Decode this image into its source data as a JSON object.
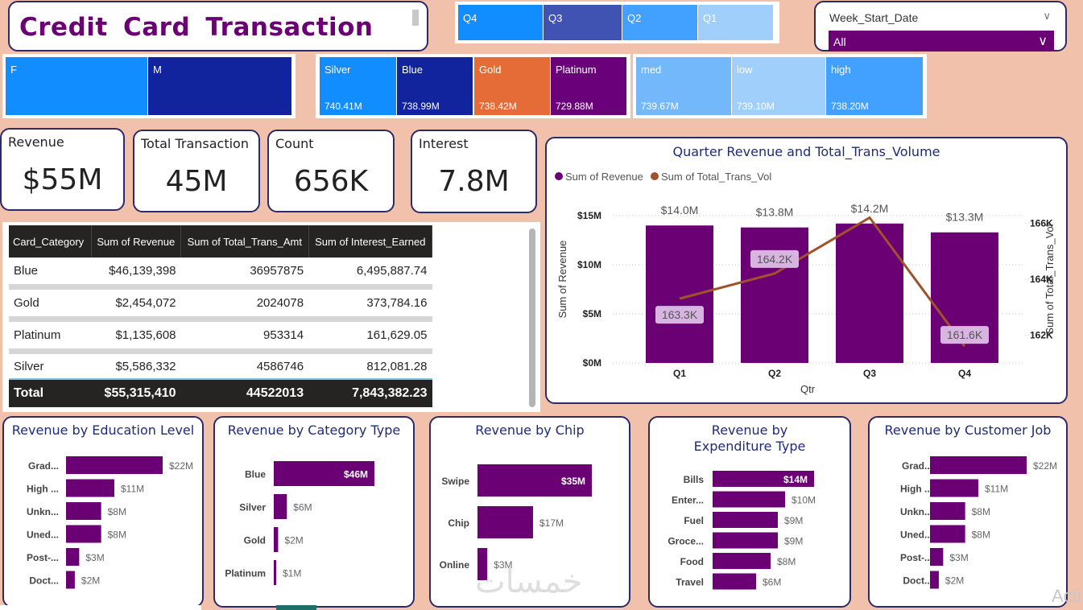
{
  "title": "Credit  Card  Transaction",
  "colors": {
    "background": "#f2c1ab",
    "accent_purple": "#6a0074",
    "title_navy": "#1f2a7a",
    "line_brown": "#a0522d"
  },
  "quarter_slicer": [
    {
      "label": "Q4",
      "color": "#118dff"
    },
    {
      "label": "Q3",
      "color": "#4053b2"
    },
    {
      "label": "Q2",
      "color": "#42a1ff"
    },
    {
      "label": "Q1",
      "color": "#a0cffc"
    }
  ],
  "week_filter": {
    "label": "Week_Start_Date",
    "selected": "All",
    "chevron_icon": "chevron-down-icon"
  },
  "gender_slicer": [
    {
      "label": "F",
      "color": "#118dff"
    },
    {
      "label": "M",
      "color": "#12239e"
    }
  ],
  "card_category_slicer": [
    {
      "label": "Silver",
      "value": "740.41M",
      "color": "#118dff"
    },
    {
      "label": "Blue",
      "value": "738.99M",
      "color": "#12239e"
    },
    {
      "label": "Gold",
      "value": "738.42M",
      "color": "#e66c37"
    },
    {
      "label": "Platinum",
      "value": "729.88M",
      "color": "#6b007b"
    }
  ],
  "income_slicer": [
    {
      "label": "med",
      "value": "739.67M",
      "color": "#72b8fb"
    },
    {
      "label": "low",
      "value": "739.10M",
      "color": "#a0cffc"
    },
    {
      "label": "high",
      "value": "738.20M",
      "color": "#42a1ff"
    }
  ],
  "kpis": [
    {
      "title": "Revenue",
      "value": "$55M"
    },
    {
      "title": "Total Transaction",
      "value": "45M"
    },
    {
      "title": "Count",
      "value": "656K"
    },
    {
      "title": "Interest",
      "value": "7.8M"
    }
  ],
  "table": {
    "columns": [
      "Card_Category",
      "Sum of Revenue",
      "Sum of Total_Trans_Amt",
      "Sum of Interest_Earned"
    ],
    "rows": [
      [
        "Blue",
        "$46,139,398",
        "36957875",
        "6,495,887.74"
      ],
      [
        "Gold",
        "$2,454,072",
        "2024078",
        "373,784.16"
      ],
      [
        "Platinum",
        "$1,135,608",
        "953314",
        "161,629.05"
      ],
      [
        "Silver",
        "$5,586,332",
        "4586746",
        "812,081.28"
      ]
    ],
    "total": [
      "Total",
      "$55,315,410",
      "44522013",
      "7,843,382.23"
    ]
  },
  "chart_data": [
    {
      "type": "bar+line",
      "title": "Quarter Revenue and Total_Trans_Volume",
      "xlabel": "Qtr",
      "ylabel": "Sum of Revenue",
      "y2label": "Sum of Total_Trans_Vol",
      "categories": [
        "Q1",
        "Q2",
        "Q3",
        "Q4"
      ],
      "legend": [
        "Sum of Revenue",
        "Sum of Total_Trans_Vol"
      ],
      "legend_position": "top-left",
      "series": [
        {
          "name": "Sum of Revenue",
          "type": "bar",
          "values": [
            14.0,
            13.8,
            14.2,
            13.3
          ],
          "labels": [
            "$14.0M",
            "$13.8M",
            "$14.2M",
            "$13.3M"
          ],
          "color": "#6a0074"
        },
        {
          "name": "Sum of Total_Trans_Vol",
          "type": "line",
          "values": [
            163.3,
            164.2,
            166.2,
            161.6
          ],
          "labels": [
            "163.3K",
            "164.2K",
            "",
            "161.6K"
          ],
          "color": "#a0522d"
        }
      ],
      "ylim": [
        0,
        15
      ],
      "y_ticks": [
        "$0M",
        "$5M",
        "$10M",
        "$15M"
      ],
      "y2lim": [
        161,
        166.5
      ],
      "y2_ticks": [
        "162K",
        "164K",
        "166K"
      ],
      "grid": true
    },
    {
      "type": "bar",
      "orientation": "horizontal",
      "title": "Revenue by Education Level",
      "categories": [
        "Grad...",
        "High ...",
        "Unkn...",
        "Uned...",
        "Post-...",
        "Doct..."
      ],
      "values": [
        22,
        11,
        8,
        8,
        3,
        2
      ],
      "labels": [
        "$22M",
        "$11M",
        "$8M",
        "$8M",
        "$3M",
        "$2M"
      ]
    },
    {
      "type": "bar",
      "orientation": "horizontal",
      "title": "Revenue by Category Type",
      "categories": [
        "Blue",
        "Silver",
        "Gold",
        "Platinum"
      ],
      "values": [
        46,
        6,
        2,
        1
      ],
      "labels": [
        "$46M",
        "$6M",
        "$2M",
        "$1M"
      ]
    },
    {
      "type": "bar",
      "orientation": "horizontal",
      "title": "Revenue by Chip",
      "categories": [
        "Swipe",
        "Chip",
        "Online"
      ],
      "values": [
        35,
        17,
        3
      ],
      "labels": [
        "$35M",
        "$17M",
        "$3M"
      ]
    },
    {
      "type": "bar",
      "orientation": "horizontal",
      "title": "Revenue by Expenditure Type",
      "categories": [
        "Bills",
        "Enter...",
        "Fuel",
        "Groce...",
        "Food",
        "Travel"
      ],
      "values": [
        14,
        10,
        9,
        9,
        8,
        6
      ],
      "labels": [
        "$14M",
        "$10M",
        "$9M",
        "$9M",
        "$8M",
        "$6M"
      ]
    },
    {
      "type": "bar",
      "orientation": "horizontal",
      "title": "Revenue by Customer Job",
      "categories": [
        "Grad...",
        "High ...",
        "Unkn...",
        "Uned...",
        "Post-...",
        "Doct..."
      ],
      "values": [
        22,
        11,
        8,
        8,
        3,
        2
      ],
      "labels": [
        "$22M",
        "$11M",
        "$8M",
        "$8M",
        "$3M",
        "$2M"
      ]
    }
  ],
  "watermark": "خمسات",
  "activation_hint": "Acti"
}
